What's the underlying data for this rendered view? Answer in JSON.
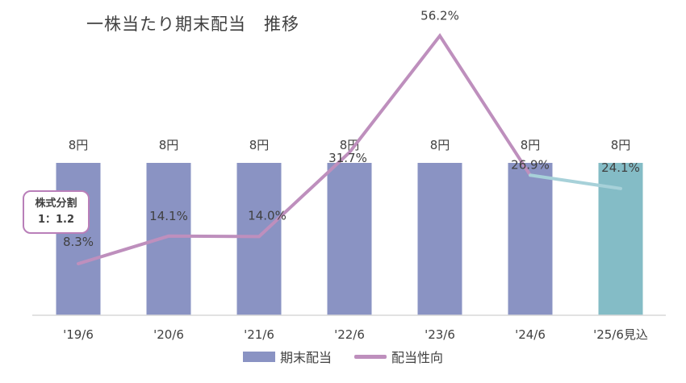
{
  "title": "一株当たり期末配当　推移",
  "split_note": {
    "line1": "株式分割",
    "line2": "1：1.2"
  },
  "legend": {
    "bar_label": "期末配当",
    "line_label": "配当性向"
  },
  "colors": {
    "bar": "#8a93c3",
    "bar_forecast": "#84bcc6",
    "line": "#be8fbd",
    "line_forecast": "#a7d1d9",
    "axis": "#d9d9d9",
    "text": "#404040"
  },
  "chart_data": {
    "type": "bar",
    "title": "一株当たり期末配当　推移",
    "categories": [
      "'19/6",
      "'20/6",
      "'21/6",
      "'22/6",
      "'23/6",
      "'24/6",
      "'25/6見込"
    ],
    "series": [
      {
        "name": "期末配当",
        "type": "bar",
        "values": [
          8,
          8,
          8,
          8,
          8,
          8,
          8
        ],
        "labels": [
          "8円",
          "8円",
          "8円",
          "8円",
          "8円",
          "8円",
          "8円"
        ],
        "forecast_index": 6
      },
      {
        "name": "配当性向",
        "type": "line",
        "values": [
          8.3,
          14.1,
          14.0,
          31.7,
          56.2,
          26.9,
          24.1
        ],
        "labels": [
          "8.3%",
          "14.1%",
          "14.0%",
          "31.7%",
          "56.2%",
          "26.9%",
          "24.1%"
        ],
        "forecast_index": 6
      }
    ],
    "annotations": [
      "株式分割 1：1.2"
    ],
    "legend_position": "bottom"
  }
}
